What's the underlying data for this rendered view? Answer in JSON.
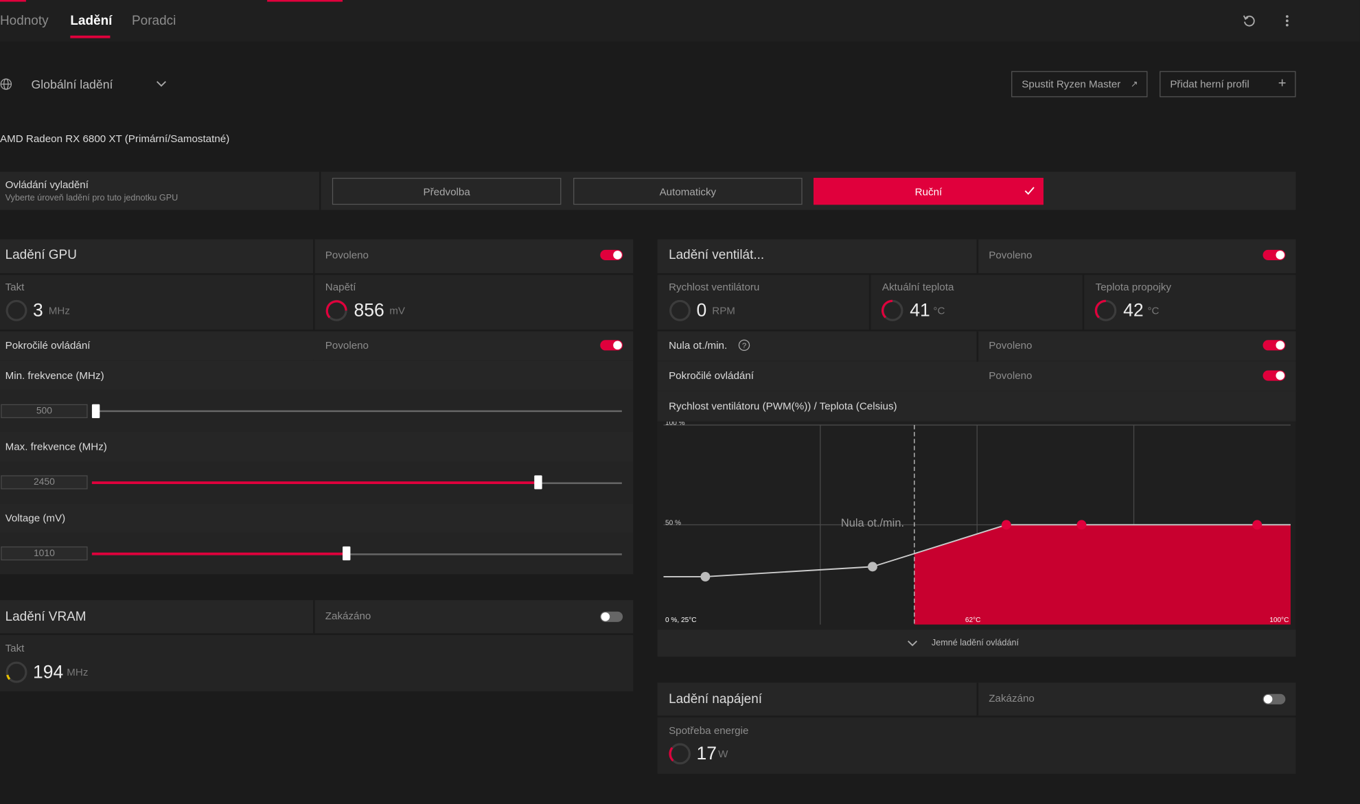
{
  "tabs": [
    "Hodnoty",
    "Ladění",
    "Poradci"
  ],
  "profile": "Globální ladění",
  "buttons": {
    "ryzen": "Spustit Ryzen Master",
    "add_profile": "Přidat herní profil"
  },
  "gpu_name": "AMD Radeon RX 6800 XT (Primární/Samostatné)",
  "tuning_control": {
    "label": "Ovládání vyladění",
    "description": "Vyberte úroveň ladění pro tuto jednotku GPU",
    "options": [
      "Předvolba",
      "Automaticky",
      "Ruční"
    ]
  },
  "gpu_tuning": {
    "title": "Ladění GPU",
    "status": "Povoleno",
    "metrics": [
      {
        "label": "Takt",
        "value": 3,
        "unit": "MHz"
      },
      {
        "label": "Napětí",
        "value": 856,
        "unit": "mV"
      }
    ],
    "advanced": {
      "label": "Pokročilé ovládání",
      "status": "Povoleno"
    },
    "sliders": [
      {
        "label": "Min. frekvence (MHz)",
        "value": 500
      },
      {
        "label": "Max. frekvence (MHz)",
        "value": 2450
      },
      {
        "label": "Voltage (mV)",
        "value": 1010
      }
    ]
  },
  "vram_tuning": {
    "title": "Ladění VRAM",
    "status": "Zakázáno",
    "metrics": [
      {
        "label": "Takt",
        "value": 194,
        "unit": "MHz"
      }
    ]
  },
  "fan_tuning": {
    "title": "Ladění ventilát...",
    "status": "Povoleno",
    "metrics": [
      {
        "label": "Rychlost ventilátoru",
        "value": 0,
        "unit": "RPM"
      },
      {
        "label": "Aktuální teplota",
        "value": 41,
        "unit": "°C"
      },
      {
        "label": "Teplota propojky",
        "value": 42,
        "unit": "°C"
      }
    ],
    "zero_rpm": {
      "label": "Nula ot./min.",
      "status": "Povoleno"
    },
    "advanced": {
      "label": "Pokročilé ovládání",
      "status": "Povoleno"
    },
    "curve": {
      "title": "Rychlost ventilátoru (PWM(%)) / Teplota (Celsius)",
      "xlim": [
        25,
        100
      ],
      "ylim": [
        0,
        100
      ],
      "yticks": [
        {
          "value": 100,
          "label": "100 %"
        },
        {
          "value": 50,
          "label": "50 %"
        }
      ],
      "origin_label": "0 %, 25°C",
      "xticks": [
        {
          "value": 62,
          "label": "62°C"
        },
        {
          "value": 100,
          "label": "100°C"
        }
      ],
      "xgrid": [
        43.75,
        62.5,
        81.25
      ],
      "zero_rpm_label": "Nula ot./min.",
      "zero_rpm_temp": 55,
      "points": [
        {
          "temp": 30,
          "pwm": 24
        },
        {
          "temp": 50,
          "pwm": 29
        },
        {
          "temp": 66,
          "pwm": 50
        },
        {
          "temp": 75,
          "pwm": 50
        },
        {
          "temp": 96,
          "pwm": 50
        }
      ],
      "fine_tune": "Jemné ladění ovládání"
    }
  },
  "power_tuning": {
    "title": "Ladění napájení",
    "status": "Zakázáno",
    "metrics": [
      {
        "label": "Spotřeba energie",
        "value": 17,
        "unit": "W"
      }
    ]
  }
}
